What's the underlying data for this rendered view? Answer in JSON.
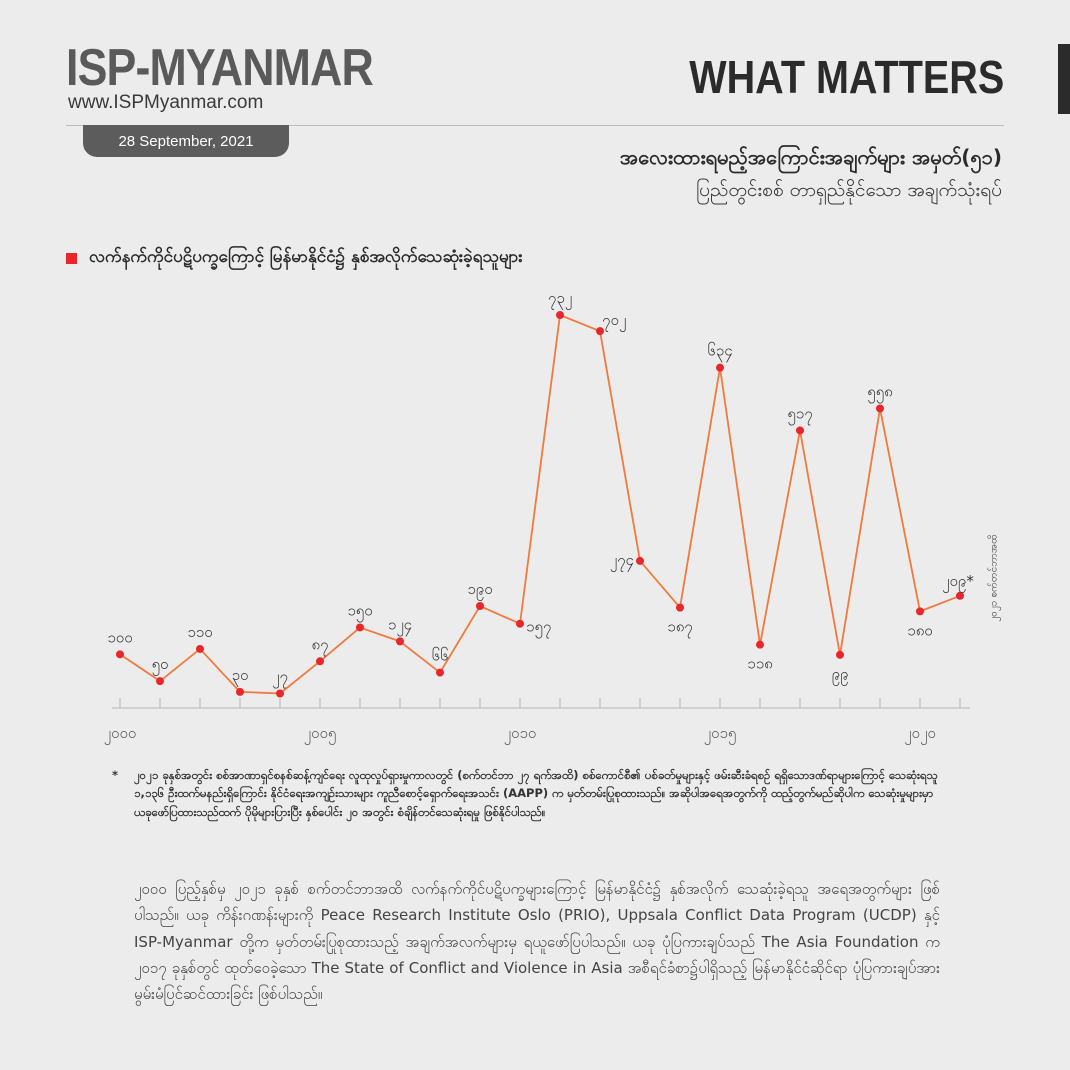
{
  "header": {
    "brand": "ISP-MYANMAR",
    "url": "www.ISPMyanmar.com",
    "date": "28 September, 2021",
    "series_label": "WHAT MATTERS",
    "title_line1": "အလေးထားရမည့်အကြောင်းအချက်များ အမှတ်(၅၁)",
    "title_line2": "ပြည်တွင်းစစ် တာရှည်နိုင်သော အချက်သုံးရပ်"
  },
  "legend_label": "လက်နက်ကိုင်ပဋိပက္ခကြောင့် မြန်မာနိုင်ငံ၌ နှစ်အလိုက်သေဆုံးခဲ့ရသူများ",
  "side_note": "၂၀၂၁ စက်တင်ဘာအထိ",
  "colors": {
    "line": "#f07a3d",
    "marker": "#e8262b",
    "legend": "#e8262b",
    "dark": "#2b2b2b"
  },
  "chart_data": {
    "type": "line",
    "x": [
      2000,
      2001,
      2002,
      2003,
      2004,
      2005,
      2006,
      2007,
      2008,
      2009,
      2010,
      2011,
      2012,
      2013,
      2014,
      2015,
      2016,
      2017,
      2018,
      2019,
      2020,
      2021
    ],
    "values": [
      100,
      50,
      110,
      30,
      27,
      87,
      150,
      124,
      66,
      190,
      157,
      732,
      702,
      274,
      187,
      634,
      118,
      517,
      99,
      558,
      180,
      209
    ],
    "point_labels": [
      "၁၀၀",
      "၅၀",
      "၁၁၀",
      "၃၀",
      "၂၇",
      "၈၇",
      "၁၅၀",
      "၁၂၄",
      "၆၆",
      "၁၉၀",
      "၁၅၇",
      "၇၃၂",
      "၇၀၂",
      "၂၇၄",
      "၁၈၇",
      "၆၃၄",
      "၁၁၈",
      "၅၁၇",
      "၉၉",
      "၅၅၈",
      "၁၈၀",
      "၂၀၉*"
    ],
    "x_tick_labels": [
      {
        "x": 2000,
        "label": "၂၀၀၀"
      },
      {
        "x": 2005,
        "label": "၂၀၀၅"
      },
      {
        "x": 2010,
        "label": "၂၀၁၀"
      },
      {
        "x": 2015,
        "label": "၂၀၁၅"
      },
      {
        "x": 2020,
        "label": "၂၀၂၀"
      }
    ],
    "ylim": [
      0,
      760
    ],
    "grid": false
  },
  "footnote": {
    "star": "*",
    "text": "၂၀၂၁ ခုနှစ်အတွင်း စစ်အာဏာရှင်စနစ်ဆန့်ကျင်ရေး လူထုလှုပ်ရှားမှုကာလတွင် (စက်တင်ဘာ ၂၇ ရက်အထိ) စစ်ကောင်စီ၏ ပစ်ခတ်မှုများနှင့် ဖမ်းဆီးခံရစဉ် ရရှိသောဒဏ်ရာများကြောင့် သေဆုံးရသူ ၁,၁၃၆ ဦးထက်မနည်းရှိကြောင်း နိုင်ငံရေးအကျဉ်းသားများ ကူညီစောင့်ရှောက်ရေးအသင်း (AAPP) က မှတ်တမ်းပြုစုထားသည်။ အဆိုပါအရေအတွက်ကို ထည့်တွက်မည်ဆိုပါက သေဆုံးမှုများမှာ ယခုဖော်ပြထားသည်ထက် ပိုမိုများပြားပြီး နှစ်ပေါင်း ၂၀ အတွင်း စံချိန်တင်သေဆုံးရမှု ဖြစ်နိုင်ပါသည်။"
  },
  "body_text": "၂၀၀၀ ပြည့်နှစ်မှ ၂၀၂၁ ခုနှစ် စက်တင်ဘာအထိ လက်နက်ကိုင်ပဋိပက္ခများကြောင့် မြန်မာနိုင်ငံ၌ နှစ်အလိုက် သေဆုံးခဲ့ရသူ အရေအတွက်များ ဖြစ်ပါသည်။ ယခု ကိန်းဂဏန်းများကို Peace Research Institute Oslo (PRIO), Uppsala Conflict Data Program (UCDP) နှင့် ISP-Myanmar တို့က မှတ်တမ်းပြုစုထားသည့် အချက်အလက်များမှ ရယူဖော်ပြပါသည်။ ယခု ပုံပြကားချပ်သည် The Asia Foundation က ၂၀၁၇ ခုနှစ်တွင် ထုတ်ဝေခဲ့သော The State of Conflict and Violence in Asia အစီရင်ခံစာ၌ပါရှိသည့် မြန်မာနိုင်ငံဆိုင်ရာ ပုံပြကားချပ်အား မွမ်းမံပြင်ဆင်ထားခြင်း ဖြစ်ပါသည်။"
}
